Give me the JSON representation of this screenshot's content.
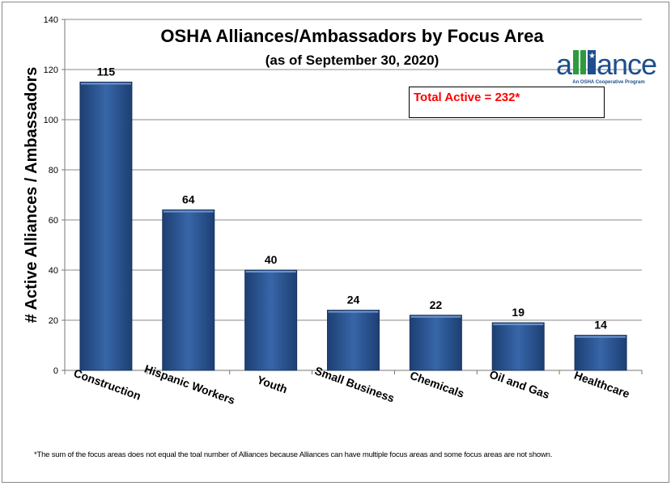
{
  "chart_data": {
    "type": "bar",
    "title": "OSHA Alliances/Ambassadors by Focus Area",
    "subtitle": "(as of September 30, 2020)",
    "xlabel": "",
    "ylabel": "# Active Alliances / Ambassadors",
    "categories": [
      "Construction",
      "Hispanic Workers",
      "Youth",
      "Small Business",
      "Chemicals",
      "Oil and Gas",
      "Healthcare"
    ],
    "values": [
      115,
      64,
      40,
      24,
      22,
      19,
      14
    ],
    "ylim": [
      0,
      140
    ],
    "yticks": [
      0,
      20,
      40,
      60,
      80,
      100,
      120,
      140
    ],
    "grid": true,
    "bar_color": "#2a528b",
    "annotation": "Total Active = 232*",
    "annotation_color": "#ff0000",
    "footnote": "*The sum of the focus areas does not equal the toal number of Alliances because Alliances can have multiple focus areas and some focus areas are not shown.",
    "logo": {
      "text": "alliance",
      "tagline": "An OSHA Cooperative Program"
    }
  }
}
